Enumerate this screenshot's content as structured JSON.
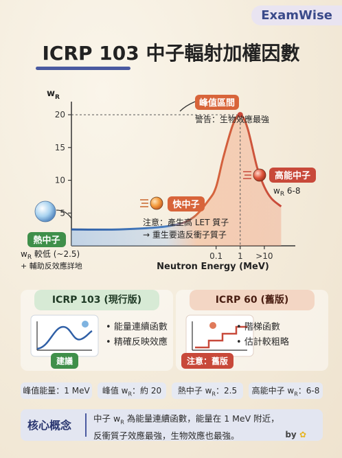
{
  "brand": "ExamWise",
  "title": "ICRP 103 中子輻射加權因數",
  "colors": {
    "blue": "#2f5fa6",
    "red": "#c8493a",
    "green": "#3f8f4a",
    "navy": "#2a3670"
  },
  "chart_data": {
    "type": "line",
    "ylabel_main": "w",
    "ylabel_sub": "R",
    "xlabel": "Neutron Energy (MeV)",
    "x_scale": "log",
    "xlim": [
      1e-07,
      100
    ],
    "ylim": [
      0,
      22
    ],
    "yticks": [
      5,
      10,
      15,
      20
    ],
    "xticks": [
      {
        "value": 0.1,
        "label": "0.1"
      },
      {
        "value": 1,
        "label": "1"
      },
      {
        "value": 10,
        "label": ">10"
      }
    ],
    "series": [
      {
        "x": [
          1e-07,
          1e-05,
          0.001,
          0.01,
          0.05,
          0.1,
          0.2,
          0.5,
          1,
          2,
          5,
          10,
          20,
          50
        ],
        "y": [
          2.5,
          2.5,
          3.0,
          4.2,
          7.0,
          9.0,
          13.5,
          18.5,
          20.0,
          18.0,
          12.0,
          9.0,
          7.2,
          6.0
        ]
      }
    ],
    "peak": {
      "x": 1,
      "y": 20
    }
  },
  "annotations": {
    "peak_label": "峰值區間",
    "peak_note": "警告：生物效應最強",
    "fast_label": "快中子",
    "fast_note1": "注意：產生高 LET 質子",
    "fast_note2": "→ 重生要造反衝子質子",
    "high_label": "高能中子",
    "high_main": "w",
    "high_sub": "R",
    "high_value": " 6-8",
    "thermal_label": "熱中子",
    "thermal_main": "w",
    "thermal_sub": "R",
    "thermal_value": " 較低 (~2.5)",
    "thermal_note": "+ 輔助反效應詳地"
  },
  "cards": {
    "left": {
      "title": "ICRP 103 (現行版)",
      "items": [
        "能量連續函數",
        "精確反映效應"
      ],
      "tag": "建議"
    },
    "right": {
      "title": "ICRP 60 (舊版)",
      "items": [
        "階梯函數",
        "估計較粗略"
      ],
      "tag": "注意：舊版"
    }
  },
  "stats": [
    {
      "pre": "峰值能量：1 MeV",
      "mid": "",
      "post": ""
    },
    {
      "pre": "峰值 w",
      "mid": "R",
      "post": "：約 20"
    },
    {
      "pre": "熱中子 w",
      "mid": "R",
      "post": "：2.5"
    },
    {
      "pre": "高能中子 w",
      "mid": "R",
      "post": "：6-8"
    }
  ],
  "concept": {
    "label": "核心概念",
    "line1_pre": "中子 w",
    "line1_sub": "R",
    "line1_post": " 為能量連續函數，能量在 1 MeV 附近，",
    "line2": "反衝質子效應最強，生物效應也最強。"
  },
  "byline": "by"
}
